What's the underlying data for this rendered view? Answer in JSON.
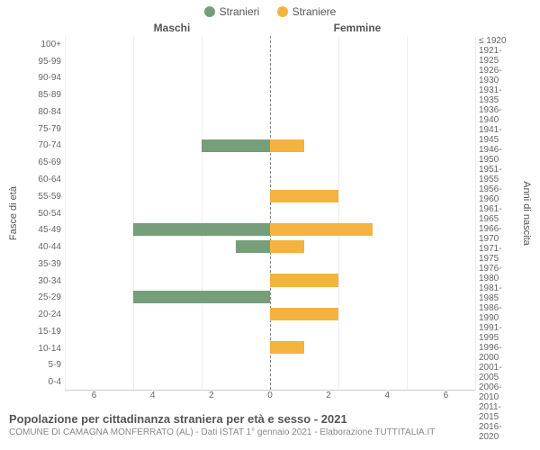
{
  "chart": {
    "type": "population-pyramid",
    "legend": {
      "left": {
        "label": "Stranieri",
        "color": "#769e79"
      },
      "right": {
        "label": "Straniere",
        "color": "#f3b33e"
      }
    },
    "column_headers": {
      "left": "Maschi",
      "right": "Femmine"
    },
    "yaxis": {
      "left_title": "Fasce di età",
      "right_title": "Anni di nascita"
    },
    "xaxis": {
      "max": 6,
      "ticks_left": [
        "6",
        "4",
        "2",
        "0"
      ],
      "ticks_right": [
        "2",
        "4",
        "6"
      ]
    },
    "grid_color": "#eeeeee",
    "center_line_color": "#888888",
    "background_color": "#ffffff",
    "ages": [
      "100+",
      "95-99",
      "90-94",
      "85-89",
      "80-84",
      "75-79",
      "70-74",
      "65-69",
      "60-64",
      "55-59",
      "50-54",
      "45-49",
      "40-44",
      "35-39",
      "30-34",
      "25-29",
      "20-24",
      "15-19",
      "10-14",
      "5-9",
      "0-4"
    ],
    "years": [
      "≤ 1920",
      "1921-1925",
      "1926-1930",
      "1931-1935",
      "1936-1940",
      "1941-1945",
      "1946-1950",
      "1951-1955",
      "1956-1960",
      "1961-1965",
      "1966-1970",
      "1971-1975",
      "1976-1980",
      "1981-1985",
      "1986-1990",
      "1991-1995",
      "1996-2000",
      "2001-2005",
      "2006-2010",
      "2011-2015",
      "2016-2020"
    ],
    "male": [
      0,
      0,
      0,
      0,
      0,
      0,
      2,
      0,
      0,
      0,
      0,
      4,
      1,
      0,
      0,
      4,
      0,
      0,
      0,
      0,
      0
    ],
    "female": [
      0,
      0,
      0,
      0,
      0,
      0,
      1,
      0,
      0,
      2,
      0,
      3,
      1,
      0,
      2,
      0,
      2,
      0,
      1,
      0,
      0
    ]
  },
  "footer": {
    "title": "Popolazione per cittadinanza straniera per età e sesso - 2021",
    "subtitle": "COMUNE DI CAMAGNA MONFERRATO (AL) - Dati ISTAT 1° gennaio 2021 - Elaborazione TUTTITALIA.IT"
  }
}
